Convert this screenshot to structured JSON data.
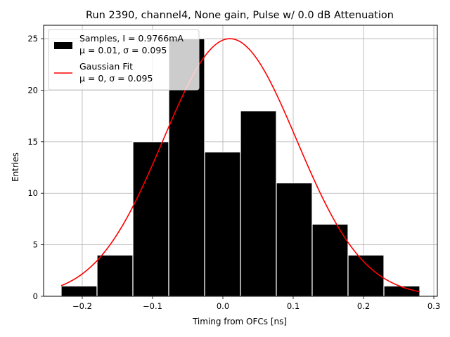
{
  "chart_data": {
    "type": "histogram",
    "title": "Run 2390, channel4, None gain, Pulse w/ 0.0 dB Attenuation",
    "xlabel": "Timing from OFCs [ns]",
    "ylabel": "Entries",
    "xlim": [
      -0.255,
      0.305
    ],
    "ylim": [
      0,
      26.3
    ],
    "xticks": [
      -0.2,
      -0.1,
      0.0,
      0.1,
      0.2,
      0.3
    ],
    "xtick_labels": [
      "−0.2",
      "−0.1",
      "0.0",
      "0.1",
      "0.2",
      "0.3"
    ],
    "yticks": [
      0,
      5,
      10,
      15,
      20,
      25
    ],
    "ytick_labels": [
      "0",
      "5",
      "10",
      "15",
      "20",
      "25"
    ],
    "grid": true,
    "bin_edges": [
      -0.23,
      -0.179,
      -0.128,
      -0.077,
      -0.026,
      0.025,
      0.076,
      0.127,
      0.178,
      0.229,
      0.28
    ],
    "counts": [
      1,
      4,
      15,
      25,
      14,
      18,
      11,
      7,
      4,
      1
    ],
    "bar_color": "#000000",
    "bar_edge_color": "#ffffff",
    "fit": {
      "mu": 0.01,
      "sigma": 0.095,
      "amplitude": 25,
      "x_range": [
        -0.23,
        0.28
      ],
      "color": "#ff0000"
    },
    "legend": {
      "position": "upper-left",
      "entries": [
        {
          "line1": "Samples, I = 0.9766mA",
          "line2": "μ = 0.01, σ = 0.095",
          "swatch": "patch",
          "color": "#000000"
        },
        {
          "line1": "Gaussian Fit",
          "line2": "μ = 0, σ = 0.095",
          "swatch": "line",
          "color": "#ff0000"
        }
      ]
    }
  }
}
